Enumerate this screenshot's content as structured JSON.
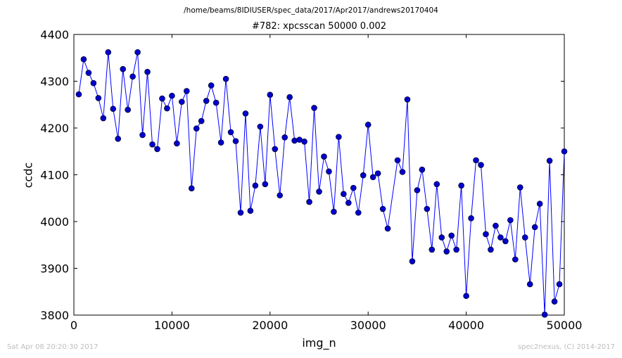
{
  "figure": {
    "supertitle": "/home/beams/8IDIUSER/spec_data/2017/Apr2017/andrews20170404",
    "footer_left": "Sat Apr 08 20:20:30 2017",
    "footer_right": "spec2nexus, (C) 2014-2017"
  },
  "chart_data": {
    "type": "line",
    "title": "#782: xpcsscan 50000 0.002",
    "xlabel": "img_n",
    "ylabel": "ccdc",
    "xlim": [
      0,
      50000
    ],
    "ylim": [
      3800,
      4400
    ],
    "xticks": [
      0,
      10000,
      20000,
      30000,
      40000,
      50000
    ],
    "yticks": [
      3800,
      3900,
      4000,
      4100,
      4200,
      4300,
      4400
    ],
    "grid": false,
    "marker": "circle",
    "line_color": "#0000ff",
    "marker_color": "#0000cc",
    "series": [
      {
        "x": [
          500,
          1000,
          1500,
          2000,
          2500,
          3000,
          3500,
          4000,
          4500,
          5000,
          5500,
          6000,
          6500,
          7000,
          7500,
          8000,
          8500,
          9000,
          9500,
          10000,
          10500,
          11000,
          11500,
          12000,
          12500,
          13000,
          13500,
          14000,
          14500,
          15000,
          15500,
          16000,
          16500,
          17000,
          17500,
          18000,
          18500,
          19000,
          19500,
          20000,
          20500,
          21000,
          21500,
          22000,
          22500,
          23000,
          23500,
          24000,
          24500,
          25000,
          25500,
          26000,
          26500,
          27000,
          27500,
          28000,
          28500,
          29000,
          29500,
          30000,
          30500,
          31000,
          31500,
          32000,
          33000,
          33500,
          34000,
          34500,
          35000,
          35500,
          36000,
          36500,
          37000,
          37500,
          38000,
          38500,
          39000,
          39500,
          40000,
          40500,
          41000,
          41500,
          42000,
          42500,
          43000,
          43500,
          44000,
          44500,
          45000,
          45500,
          46000,
          46500,
          47000,
          47500,
          48000,
          48500,
          49000,
          49500,
          50000
        ],
        "y": [
          4272,
          4347,
          4318,
          4296,
          4264,
          4221,
          4362,
          4241,
          4177,
          4326,
          4239,
          4310,
          4362,
          4185,
          4320,
          4165,
          4155,
          4263,
          4242,
          4269,
          4167,
          4256,
          4279,
          4071,
          4199,
          4215,
          4258,
          4291,
          4254,
          4169,
          4305,
          4191,
          4172,
          4019,
          4231,
          4023,
          4077,
          4203,
          4080,
          4271,
          4155,
          4056,
          4180,
          4266,
          4173,
          4175,
          4171,
          4042,
          4243,
          4064,
          4139,
          4107,
          4021,
          4181,
          4059,
          4040,
          4072,
          4019,
          4099,
          4207,
          4095,
          4103,
          4027,
          3985,
          4131,
          4106,
          4261,
          3915,
          4067,
          4111,
          4027,
          3940,
          4080,
          3966,
          3936,
          3970,
          3940,
          4077,
          3841,
          4007,
          4131,
          4121,
          3973,
          3940,
          3991,
          3966,
          3958,
          4003,
          3919,
          4073,
          3966,
          3866,
          3988,
          4038,
          3801,
          4130,
          3829,
          3866,
          4150
        ]
      }
    ]
  }
}
